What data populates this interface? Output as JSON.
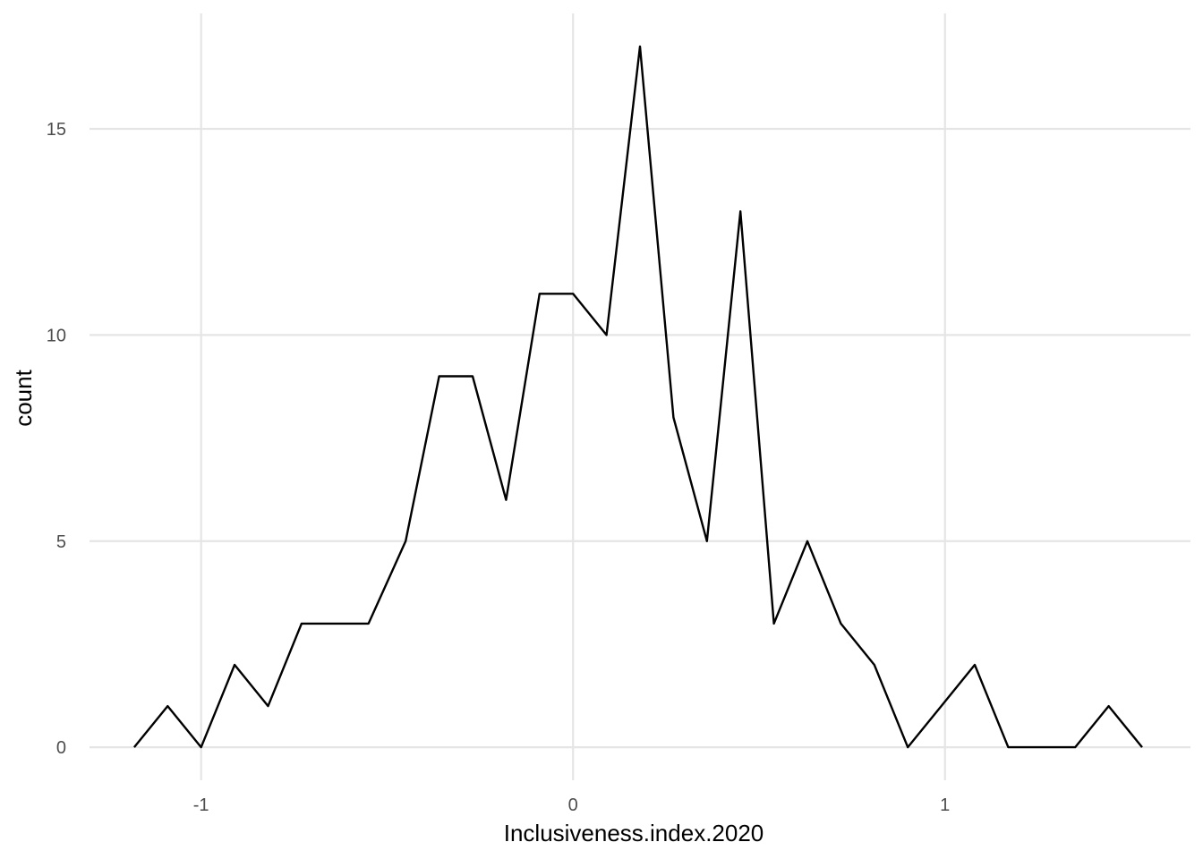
{
  "chart_data": {
    "type": "line",
    "xlabel": "Inclusiveness.index.2020",
    "ylabel": "count",
    "xlim": [
      -1.3,
      1.66
    ],
    "ylim": [
      -0.8,
      17.8
    ],
    "x_ticks": [
      -1,
      0,
      1
    ],
    "x_tick_labels": [
      "-1",
      "0",
      "1"
    ],
    "y_ticks": [
      0,
      5,
      10,
      15
    ],
    "y_tick_labels": [
      "0",
      "5",
      "10",
      "15"
    ],
    "grid": true,
    "series": [
      {
        "color": "#000000",
        "x": [
          -1.18,
          -1.09,
          -1.0,
          -0.91,
          -0.82,
          -0.73,
          -0.64,
          -0.55,
          -0.45,
          -0.36,
          -0.27,
          -0.18,
          -0.09,
          0.0,
          0.09,
          0.18,
          0.27,
          0.36,
          0.45,
          0.54,
          0.63,
          0.72,
          0.81,
          0.9,
          0.99,
          1.08,
          1.17,
          1.26,
          1.35,
          1.44,
          1.53
        ],
        "y": [
          0,
          1,
          0,
          2,
          1,
          3,
          3,
          3,
          5,
          9,
          9,
          6,
          11,
          11,
          10,
          17,
          8,
          5,
          13,
          3,
          5,
          3,
          2,
          0,
          1,
          2,
          0,
          0,
          0,
          1,
          0
        ]
      }
    ]
  }
}
